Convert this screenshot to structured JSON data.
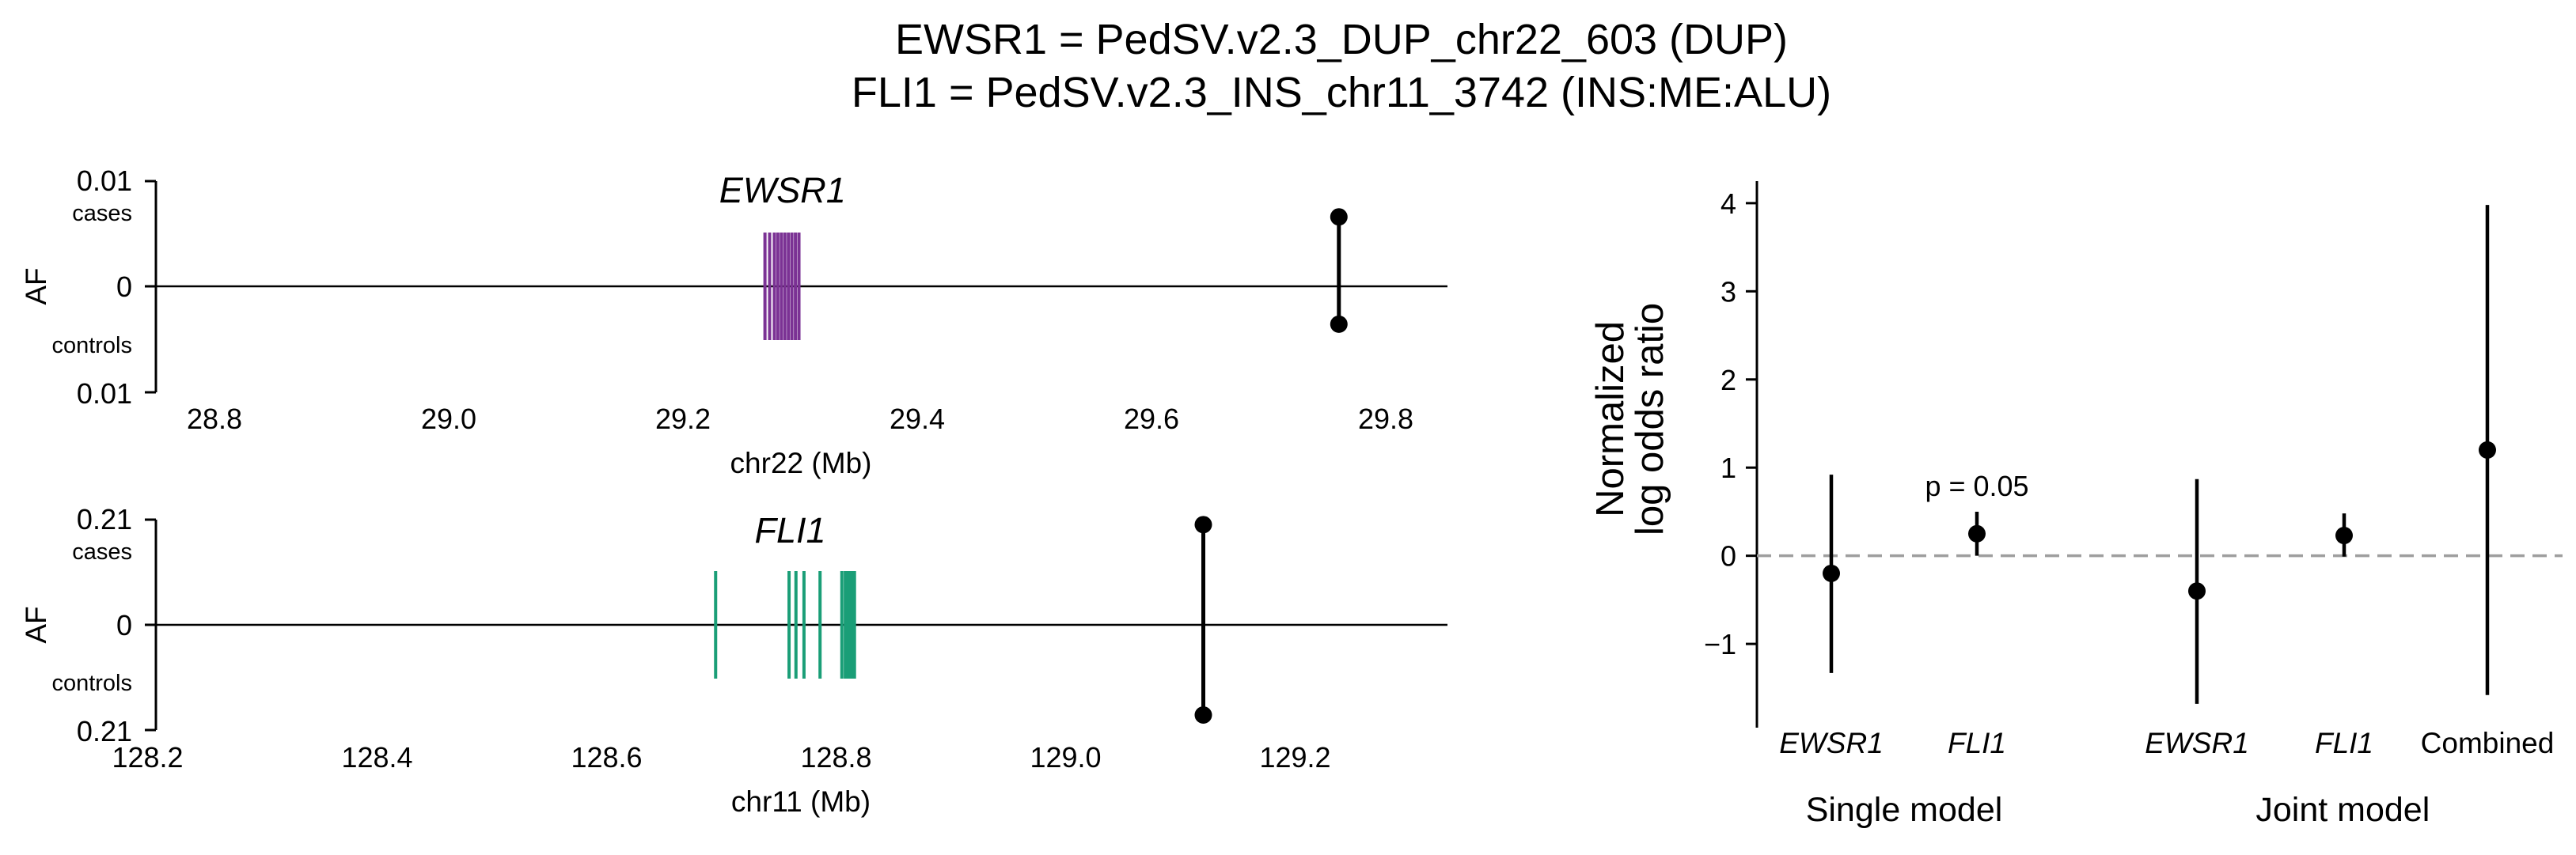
{
  "title_lines": [
    "EWSR1 = PedSV.v2.3_DUP_chr22_603 (DUP)",
    "FLI1 = PedSV.v2.3_INS_chr11_3742 (INS:ME:ALU)"
  ],
  "chart_data": [
    {
      "type": "scatter",
      "panel": "top-left",
      "gene": "EWSR1",
      "ylabel": "AF",
      "ytick_labels": {
        "top": "0.01",
        "top_sub": "cases",
        "zero": "0",
        "bottom_sub": "controls",
        "bottom": "0.01"
      },
      "ylim": [
        -0.01,
        0.01
      ],
      "xlabel": "chr22 (Mb)",
      "xlim": [
        28.75,
        29.85
      ],
      "xticks": [
        "28.8",
        "29.0",
        "29.2",
        "29.4",
        "29.6",
        "29.8"
      ],
      "gene_color": "#7b3294",
      "gene_span": [
        29.27,
        29.3
      ],
      "exons": [
        29.27,
        29.274,
        29.278,
        29.281,
        29.284,
        29.287,
        29.29,
        29.293,
        29.296,
        29.299
      ],
      "variant": {
        "x": 29.76,
        "case_af": 0.0066,
        "control_af": 0.0036
      }
    },
    {
      "type": "scatter",
      "panel": "bottom-left",
      "gene": "FLI1",
      "ylabel": "AF",
      "ytick_labels": {
        "top": "0.21",
        "top_sub": "cases",
        "zero": "0",
        "bottom_sub": "controls",
        "bottom": "0.21"
      },
      "ylim": [
        -0.21,
        0.21
      ],
      "xlabel": "chr11 (Mb)",
      "xlim": [
        128.19,
        129.33
      ],
      "xticks": [
        "128.2",
        "128.4",
        "128.6",
        "128.8",
        "129.0",
        "129.2"
      ],
      "gene_color": "#1a9e77",
      "gene_span": [
        128.7,
        128.82
      ],
      "exons": [
        128.695,
        128.759,
        128.765,
        128.772,
        128.786,
        128.805,
        128.808,
        128.81,
        128.812,
        128.814,
        128.816
      ],
      "variant": {
        "x": 129.12,
        "case_af": 0.2,
        "control_af": 0.18
      }
    },
    {
      "type": "scatter",
      "panel": "right",
      "ylabel_lines": [
        "Normalized",
        "log odds ratio"
      ],
      "ylim": [
        -1.95,
        4.25
      ],
      "yticks": [
        -1,
        0,
        1,
        2,
        3,
        4
      ],
      "ytick_labels": [
        "−1",
        "0",
        "1",
        "2",
        "3",
        "4"
      ],
      "reference_line": 0,
      "categories": [
        "EWSR1",
        "FLI1",
        "EWSR1",
        "FLI1",
        "Combined"
      ],
      "category_italic": [
        true,
        true,
        true,
        true,
        false
      ],
      "groups": [
        {
          "label": "Single model",
          "categories": [
            0,
            1
          ]
        },
        {
          "label": "Joint model",
          "categories": [
            2,
            3,
            4
          ]
        }
      ],
      "points": [
        {
          "value": -0.2,
          "ci_low": -1.33,
          "ci_high": 0.92
        },
        {
          "value": 0.25,
          "ci_low": 0.0,
          "ci_high": 0.5
        },
        {
          "value": -0.4,
          "ci_low": -1.68,
          "ci_high": 0.87
        },
        {
          "value": 0.23,
          "ci_low": -0.01,
          "ci_high": 0.48
        },
        {
          "value": 1.2,
          "ci_low": -1.58,
          "ci_high": 3.98
        }
      ],
      "annotation": {
        "text": "p = 0.05",
        "category": 1
      }
    }
  ]
}
